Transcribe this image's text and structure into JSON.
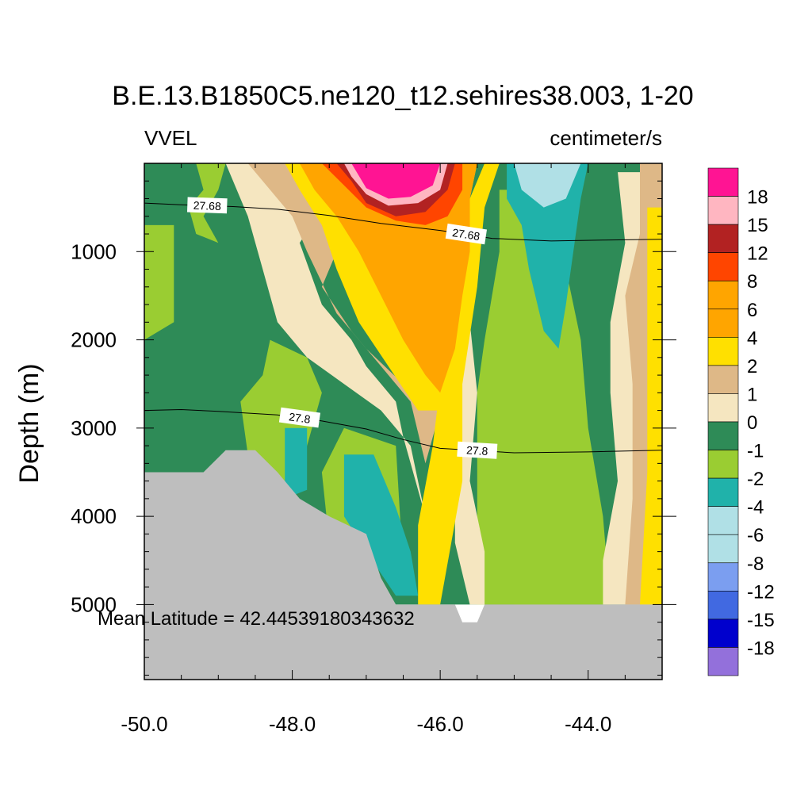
{
  "chart_data": {
    "type": "heatmap",
    "title": "B.E.13.B1850C5.ne120_t12.sehires38.003, 1-20",
    "left_label": "VVEL",
    "right_label": "centimeter/s",
    "ylabel": "Depth (m)",
    "xlabel": "",
    "xlim": [
      -50,
      -43
    ],
    "ylim": [
      5850,
      0
    ],
    "x_ticks": [
      "-50.0",
      "-48.0",
      "-46.0",
      "-44.0"
    ],
    "x_tick_values": [
      -50,
      -48,
      -46,
      -44
    ],
    "y_ticks": [
      "1000",
      "2000",
      "3000",
      "4000",
      "5000"
    ],
    "y_tick_values": [
      1000,
      2000,
      3000,
      4000,
      5000
    ],
    "annotation": "Mean Latitude = 42.44539180343632",
    "colorbar": {
      "labels": [
        "18",
        "15",
        "12",
        "8",
        "6",
        "4",
        "2",
        "1",
        "0",
        "-1",
        "-2",
        "-4",
        "-6",
        "-8",
        "-12",
        "-15",
        "-18"
      ],
      "colors": [
        "#FF1493",
        "#FFB6C1",
        "#B22222",
        "#FF4500",
        "#FFA500",
        "#FFA500",
        "#FFE000",
        "#DEB887",
        "#F5E6C0",
        "#2E8B57",
        "#9ACD32",
        "#20B2AA",
        "#B0E0E6",
        "#B0E0E6",
        "#7B9EF0",
        "#4169E1",
        "#0000CD",
        "#9370DB"
      ]
    },
    "contours": [
      {
        "level": "27.68",
        "points": [
          [
            -50,
            450
          ],
          [
            -49.5,
            470
          ],
          [
            -48.8,
            490
          ],
          [
            -48.2,
            520
          ],
          [
            -47.5,
            590
          ],
          [
            -46.8,
            680
          ],
          [
            -46.0,
            760
          ],
          [
            -45.3,
            850
          ],
          [
            -44.5,
            880
          ],
          [
            -43.8,
            870
          ],
          [
            -43.0,
            860
          ]
        ]
      },
      {
        "level": "27.8",
        "points": [
          [
            -50,
            2800
          ],
          [
            -49.5,
            2790
          ],
          [
            -49.0,
            2810
          ],
          [
            -48.2,
            2850
          ],
          [
            -47.6,
            2920
          ],
          [
            -47.0,
            3010
          ],
          [
            -46.5,
            3130
          ],
          [
            -46.0,
            3230
          ],
          [
            -45.0,
            3280
          ],
          [
            -44.0,
            3270
          ],
          [
            -43.0,
            3250
          ]
        ]
      }
    ],
    "fields": [
      {
        "value": -1,
        "color": "#2E8B57",
        "polygon": [
          [
            -50,
            0
          ],
          [
            -43,
            0
          ],
          [
            -43,
            5000
          ],
          [
            -50,
            5000
          ]
        ]
      },
      {
        "value": -2,
        "color": "#9ACD32",
        "polygon": [
          [
            -50,
            0
          ],
          [
            -49.3,
            0
          ],
          [
            -49.2,
            300
          ],
          [
            -49.4,
            500
          ],
          [
            -49.3,
            800
          ],
          [
            -49.0,
            900
          ],
          [
            -49.2,
            600
          ],
          [
            -49.0,
            300
          ],
          [
            -48.9,
            0
          ],
          [
            -48.9,
            0
          ],
          [
            -49.3,
            0
          ]
        ]
      },
      {
        "value": -2,
        "color": "#9ACD32",
        "polygon": [
          [
            -50,
            700
          ],
          [
            -49.6,
            700
          ],
          [
            -49.6,
            1800
          ],
          [
            -50,
            2000
          ]
        ]
      },
      {
        "value": -2,
        "color": "#9ACD32",
        "polygon": [
          [
            -48.3,
            2000
          ],
          [
            -47.8,
            2200
          ],
          [
            -47.6,
            2600
          ],
          [
            -47.9,
            3500
          ],
          [
            -48.4,
            3800
          ],
          [
            -48.6,
            3300
          ],
          [
            -48.7,
            2700
          ],
          [
            -48.4,
            2400
          ]
        ]
      },
      {
        "value": -2,
        "color": "#9ACD32",
        "polygon": [
          [
            -47.3,
            3000
          ],
          [
            -46.6,
            3200
          ],
          [
            -46.5,
            4600
          ],
          [
            -46.9,
            4500
          ],
          [
            -47.5,
            4300
          ],
          [
            -47.6,
            3500
          ]
        ]
      },
      {
        "value": -2,
        "color": "#9ACD32",
        "polygon": [
          [
            -45.2,
            300
          ],
          [
            -44.5,
            300
          ],
          [
            -44.3,
            1200
          ],
          [
            -44.1,
            2000
          ],
          [
            -44.0,
            3000
          ],
          [
            -43.8,
            4000
          ],
          [
            -43.7,
            5000
          ],
          [
            -45.5,
            5000
          ],
          [
            -45.5,
            2600
          ],
          [
            -45.4,
            2000
          ],
          [
            -45.2,
            1000
          ]
        ]
      },
      {
        "value": -2,
        "color": "#9ACD32",
        "polygon": [
          [
            -45.0,
            3400
          ],
          [
            -44.4,
            3400
          ],
          [
            -44.4,
            5000
          ],
          [
            -45.0,
            5000
          ]
        ]
      },
      {
        "value": -4,
        "color": "#20B2AA",
        "polygon": [
          [
            -45.1,
            0
          ],
          [
            -44.0,
            0
          ],
          [
            -44.1,
            400
          ],
          [
            -44.3,
            1600
          ],
          [
            -44.4,
            2100
          ],
          [
            -44.6,
            1900
          ],
          [
            -44.8,
            1200
          ],
          [
            -44.9,
            700
          ],
          [
            -45.1,
            400
          ]
        ]
      },
      {
        "value": -4,
        "color": "#20B2AA",
        "polygon": [
          [
            -48.1,
            3000
          ],
          [
            -47.8,
            3000
          ],
          [
            -47.8,
            3700
          ],
          [
            -48.1,
            3800
          ]
        ]
      },
      {
        "value": -4,
        "color": "#20B2AA",
        "polygon": [
          [
            -47.3,
            3300
          ],
          [
            -46.9,
            3300
          ],
          [
            -46.6,
            3900
          ],
          [
            -46.4,
            4400
          ],
          [
            -46.3,
            4900
          ],
          [
            -46.6,
            4900
          ],
          [
            -47.0,
            4400
          ],
          [
            -47.3,
            4000
          ]
        ]
      },
      {
        "value": -6,
        "color": "#B0E0E6",
        "polygon": [
          [
            -45.0,
            0
          ],
          [
            -44.1,
            0
          ],
          [
            -44.3,
            400
          ],
          [
            -44.6,
            500
          ],
          [
            -44.9,
            300
          ]
        ]
      },
      {
        "value": 0,
        "color": "#F5E6C0",
        "polygon": [
          [
            -48.9,
            0
          ],
          [
            -47.2,
            0
          ],
          [
            -47.5,
            400
          ],
          [
            -47.9,
            900
          ],
          [
            -47.6,
            1600
          ],
          [
            -47.2,
            2000
          ],
          [
            -47.0,
            2300
          ],
          [
            -46.6,
            2700
          ],
          [
            -46.5,
            3100
          ],
          [
            -46.2,
            4000
          ],
          [
            -46.4,
            3200
          ],
          [
            -46.8,
            2800
          ],
          [
            -47.3,
            2500
          ],
          [
            -47.8,
            2200
          ],
          [
            -48.2,
            1800
          ],
          [
            -48.4,
            1200
          ],
          [
            -48.6,
            600
          ]
        ]
      },
      {
        "value": 0,
        "color": "#F5E6C0",
        "polygon": [
          [
            -45.6,
            1800
          ],
          [
            -45.5,
            2600
          ],
          [
            -45.6,
            3600
          ],
          [
            -45.4,
            4400
          ],
          [
            -45.4,
            5000
          ],
          [
            -45.6,
            5000
          ],
          [
            -45.8,
            4300
          ],
          [
            -45.8,
            3000
          ]
        ]
      },
      {
        "value": 0,
        "color": "#F5E6C0",
        "polygon": [
          [
            -43.6,
            100
          ],
          [
            -43.0,
            100
          ],
          [
            -43.0,
            5000
          ],
          [
            -43.8,
            5000
          ],
          [
            -43.8,
            4500
          ],
          [
            -43.6,
            3600
          ],
          [
            -43.7,
            2600
          ],
          [
            -43.7,
            1800
          ],
          [
            -43.5,
            900
          ]
        ]
      },
      {
        "value": 1,
        "color": "#DEB887",
        "polygon": [
          [
            -48.6,
            0
          ],
          [
            -47.0,
            0
          ],
          [
            -47.2,
            600
          ],
          [
            -47.6,
            1400
          ],
          [
            -47.2,
            1900
          ],
          [
            -46.8,
            2300
          ],
          [
            -46.4,
            2700
          ],
          [
            -46.2,
            3400
          ],
          [
            -46.0,
            2800
          ],
          [
            -46.5,
            2500
          ],
          [
            -47.0,
            2100
          ],
          [
            -47.4,
            1700
          ],
          [
            -47.8,
            1000
          ],
          [
            -48.0,
            600
          ],
          [
            -48.3,
            300
          ]
        ]
      },
      {
        "value": 1,
        "color": "#DEB887",
        "polygon": [
          [
            -43.3,
            0
          ],
          [
            -43.0,
            0
          ],
          [
            -43.0,
            5000
          ],
          [
            -43.5,
            5000
          ],
          [
            -43.4,
            3800
          ],
          [
            -43.4,
            2500
          ],
          [
            -43.5,
            1500
          ],
          [
            -43.3,
            800
          ]
        ]
      },
      {
        "value": 2,
        "color": "#FFE000",
        "polygon": [
          [
            -48.2,
            0
          ],
          [
            -45.4,
            0
          ],
          [
            -45.7,
            600
          ],
          [
            -45.9,
            1800
          ],
          [
            -46.1,
            3200
          ],
          [
            -46.3,
            4100
          ],
          [
            -46.3,
            5000
          ],
          [
            -46.0,
            5000
          ],
          [
            -45.7,
            3600
          ],
          [
            -45.7,
            2500
          ],
          [
            -45.5,
            1400
          ],
          [
            -45.4,
            500
          ],
          [
            -45.2,
            0
          ]
        ]
      },
      {
        "value": 2,
        "color": "#FFE000",
        "polygon": [
          [
            -48.1,
            0
          ],
          [
            -45.5,
            0
          ],
          [
            -45.6,
            400
          ],
          [
            -45.8,
            1000
          ],
          [
            -45.9,
            1800
          ],
          [
            -46.0,
            2800
          ],
          [
            -46.3,
            2800
          ],
          [
            -46.7,
            2300
          ],
          [
            -47.1,
            1800
          ],
          [
            -47.4,
            1200
          ],
          [
            -47.6,
            700
          ],
          [
            -47.9,
            300
          ]
        ]
      },
      {
        "value": 2,
        "color": "#FFE000",
        "polygon": [
          [
            -43.2,
            500
          ],
          [
            -43.0,
            500
          ],
          [
            -43.0,
            5000
          ],
          [
            -43.3,
            5000
          ],
          [
            -43.2,
            3500
          ],
          [
            -43.2,
            2000
          ]
        ]
      },
      {
        "value": 4,
        "color": "#FFA500",
        "polygon": [
          [
            -47.9,
            0
          ],
          [
            -45.5,
            0
          ],
          [
            -45.6,
            400
          ],
          [
            -45.6,
            1000
          ],
          [
            -45.7,
            1500
          ],
          [
            -45.8,
            2100
          ],
          [
            -46.0,
            2600
          ],
          [
            -46.2,
            2400
          ],
          [
            -46.5,
            2000
          ],
          [
            -46.8,
            1500
          ],
          [
            -47.1,
            1000
          ],
          [
            -47.4,
            600
          ],
          [
            -47.7,
            300
          ]
        ]
      },
      {
        "value": 8,
        "color": "#FF4500",
        "polygon": [
          [
            -47.6,
            0
          ],
          [
            -45.7,
            0
          ],
          [
            -45.7,
            300
          ],
          [
            -45.9,
            600
          ],
          [
            -46.2,
            700
          ],
          [
            -46.6,
            650
          ],
          [
            -47.0,
            500
          ],
          [
            -47.3,
            250
          ]
        ]
      },
      {
        "value": 12,
        "color": "#B22222",
        "polygon": [
          [
            -47.4,
            0
          ],
          [
            -45.8,
            0
          ],
          [
            -45.9,
            300
          ],
          [
            -46.2,
            550
          ],
          [
            -46.6,
            600
          ],
          [
            -47.0,
            450
          ],
          [
            -47.2,
            200
          ]
        ]
      },
      {
        "value": 15,
        "color": "#FFB6C1",
        "polygon": [
          [
            -47.3,
            0
          ],
          [
            -45.9,
            0
          ],
          [
            -46.0,
            300
          ],
          [
            -46.3,
            450
          ],
          [
            -46.7,
            480
          ],
          [
            -47.0,
            350
          ],
          [
            -47.2,
            150
          ]
        ]
      },
      {
        "value": 18,
        "color": "#FF1493",
        "polygon": [
          [
            -47.2,
            0
          ],
          [
            -46.0,
            0
          ],
          [
            -46.1,
            250
          ],
          [
            -46.4,
            380
          ],
          [
            -46.7,
            400
          ],
          [
            -47.0,
            280
          ]
        ]
      }
    ],
    "land": {
      "color": "#BEBEBE",
      "polygon": [
        [
          -50,
          3500
        ],
        [
          -49.2,
          3500
        ],
        [
          -48.9,
          3250
        ],
        [
          -48.5,
          3250
        ],
        [
          -48.2,
          3500
        ],
        [
          -47.9,
          3800
        ],
        [
          -47.5,
          4000
        ],
        [
          -47.0,
          4200
        ],
        [
          -46.8,
          4700
        ],
        [
          -46.6,
          5000
        ],
        [
          -45.8,
          5000
        ],
        [
          -45.7,
          5200
        ],
        [
          -45.5,
          5200
        ],
        [
          -45.4,
          5000
        ],
        [
          -43,
          5000
        ],
        [
          -43,
          5850
        ],
        [
          -50,
          5850
        ]
      ]
    }
  }
}
